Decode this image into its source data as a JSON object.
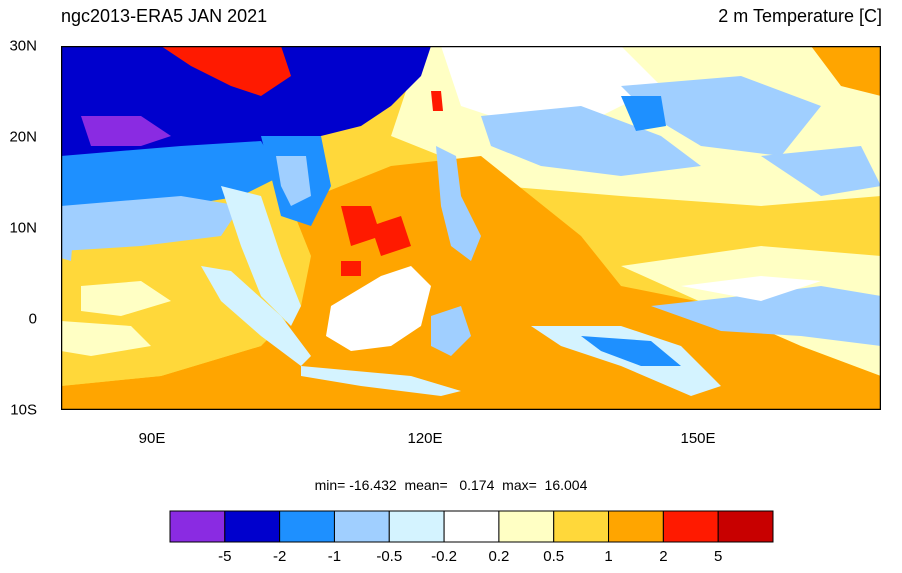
{
  "title": {
    "left": "ngc2013-ERA5 JAN 2021",
    "right": "2 m Temperature [C]"
  },
  "stats": "min= -16.432  mean=   0.174  max=  16.004",
  "axes": {
    "y_labels": [
      "30N",
      "20N",
      "10N",
      "0",
      "10S"
    ],
    "x_labels": [
      "90E",
      "120E",
      "150E"
    ]
  },
  "colorbar": {
    "colors": [
      "#8a2be2",
      "#0000cd",
      "#1e90ff",
      "#a0cfff",
      "#d4f3ff",
      "#ffffff",
      "#ffffc4",
      "#ffd83a",
      "#ffa500",
      "#ff1a00",
      "#c80000"
    ],
    "labels": [
      "-5",
      "-2",
      "-1",
      "-0.5",
      "-0.2",
      "0.2",
      "0.5",
      "1",
      "2",
      "5"
    ]
  },
  "map": {
    "colors": {
      "purple": "#8a2be2",
      "dark_blue": "#0000cd",
      "blue": "#1e90ff",
      "light_blue": "#a0cfff",
      "pale_blue": "#d4f3ff",
      "white": "#ffffff",
      "cream": "#ffffc4",
      "yellow": "#ffd83a",
      "orange": "#ffa500",
      "red": "#ff1a00",
      "dark_red": "#c80000"
    }
  }
}
